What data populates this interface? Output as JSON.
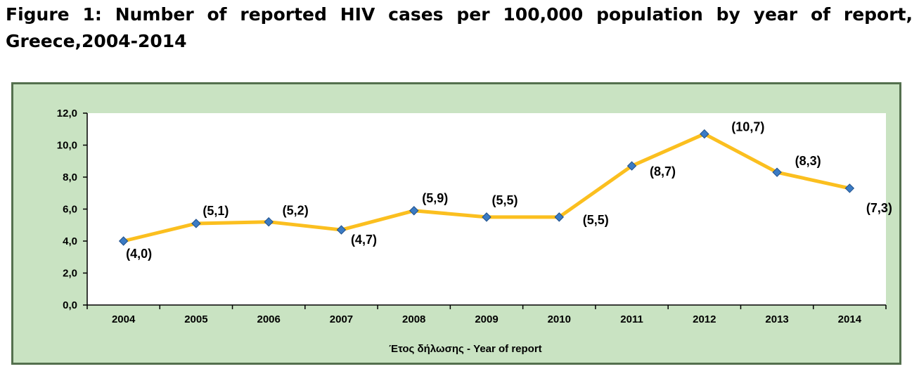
{
  "figure": {
    "title": "Figure 1: Number of reported HIV cases per 100,000 population by year of report, Greece,2004-2014"
  },
  "colors": {
    "frame_background": "#c9e3c2",
    "frame_border": "#54704e",
    "plot_background": "#ffffff",
    "line": "#fbbf1f",
    "marker": "#3b7bc4",
    "axis": "#000000"
  },
  "chart_data": {
    "type": "line",
    "title": "",
    "xlabel": "Έτος δήλωσης - Year of report",
    "ylabel": "",
    "categories": [
      "2004",
      "2005",
      "2006",
      "2007",
      "2008",
      "2009",
      "2010",
      "2011",
      "2012",
      "2013",
      "2014"
    ],
    "series": [
      {
        "values": [
          4.0,
          5.1,
          5.2,
          4.7,
          5.9,
          5.5,
          5.5,
          8.7,
          10.7,
          8.3,
          7.3
        ],
        "data_labels": [
          "(4,0)",
          "(5,1)",
          "(5,2)",
          "(4,7)",
          "(5,9)",
          "(5,5)",
          "(5,5)",
          "(8,7)",
          "(10,7)",
          "(8,3)",
          "(7,3)"
        ]
      }
    ],
    "ylim": [
      0,
      12
    ],
    "y_ticks": [
      0,
      2,
      4,
      6,
      8,
      10,
      12
    ],
    "y_tick_labels": [
      "0,0",
      "2,0",
      "4,0",
      "6,0",
      "8,0",
      "10,0",
      "12,0"
    ],
    "grid": false,
    "legend": "none",
    "marker": "diamond"
  }
}
